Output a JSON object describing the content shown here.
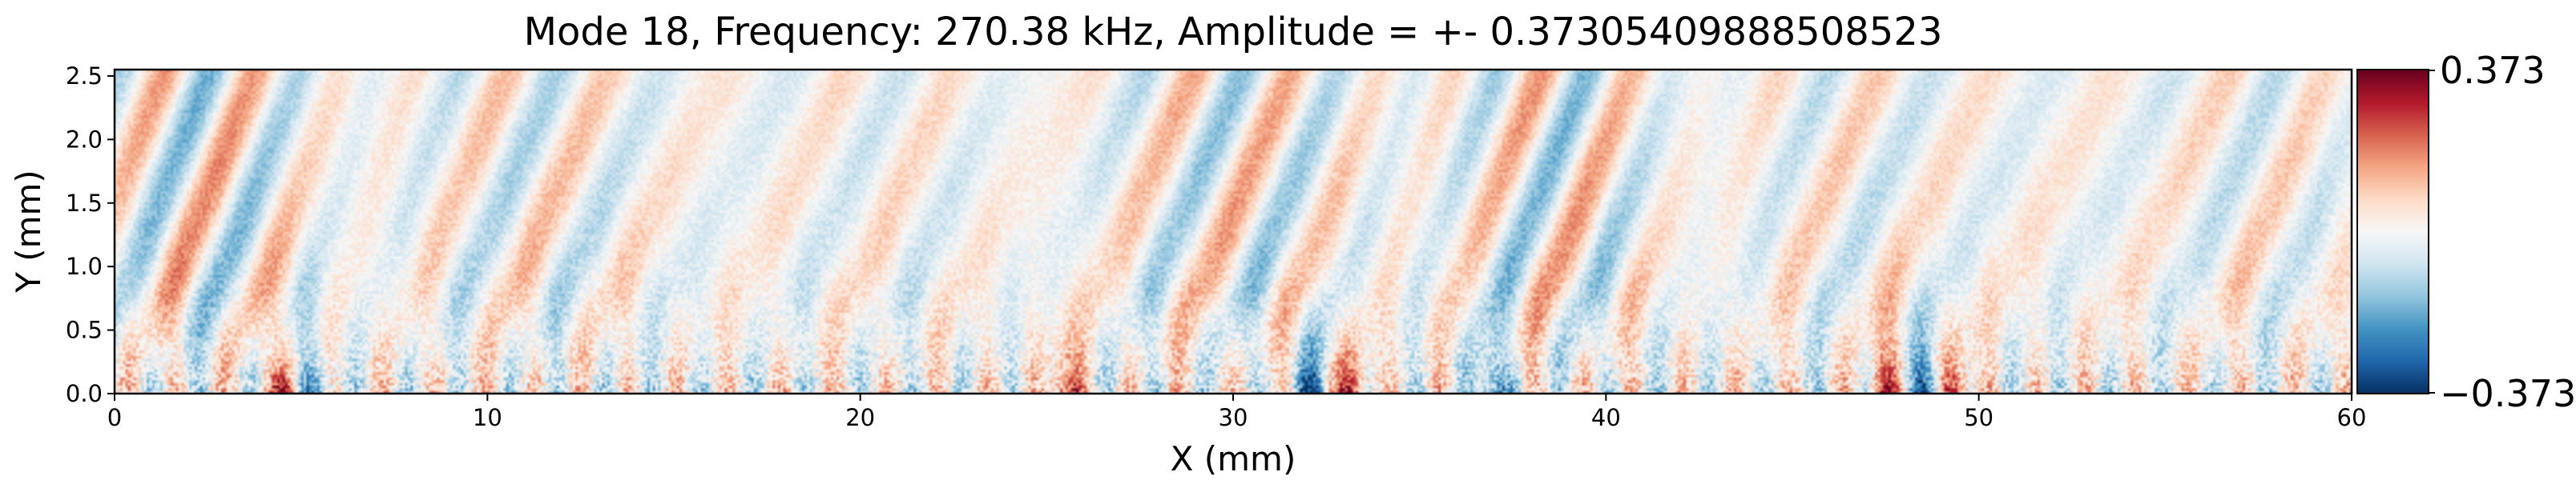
{
  "chart_data": {
    "type": "heatmap",
    "title": "Mode 18, Frequency: 270.38 kHz, Amplitude = +- 0.37305409888508523",
    "xlabel": "X (mm)",
    "ylabel": "Y (mm)",
    "xlim": [
      0,
      60
    ],
    "ylim": [
      0,
      2.55
    ],
    "x_ticks": [
      0,
      10,
      20,
      30,
      40,
      50,
      60
    ],
    "x_tick_labels": [
      "0",
      "10",
      "20",
      "30",
      "40",
      "50",
      "60"
    ],
    "y_ticks": [
      0.0,
      0.5,
      1.0,
      1.5,
      2.0,
      2.5
    ],
    "y_tick_labels": [
      "0.0",
      "0.5",
      "1.0",
      "1.5",
      "2.0",
      "2.5"
    ],
    "colormap": "RdBu_r",
    "colormap_stops": [
      "#053061",
      "#2166ac",
      "#4393c3",
      "#92c5de",
      "#d1e5f0",
      "#f7f7f7",
      "#fddbc7",
      "#f4a582",
      "#d6604d",
      "#b2182b",
      "#67001f"
    ],
    "colorbar": {
      "vmin": -0.373,
      "vmax": 0.373,
      "tick_labels": [
        "0.373",
        "−0.373"
      ]
    },
    "grid": false,
    "field_description_features": {
      "strong_near_wall_streaks_x": [
        4.6,
        5.3,
        25.5,
        32.0,
        33.2,
        37.0,
        47.5,
        48.6,
        49.4
      ],
      "oblique_wave_band_y_range": [
        0.5,
        2.5
      ]
    }
  }
}
